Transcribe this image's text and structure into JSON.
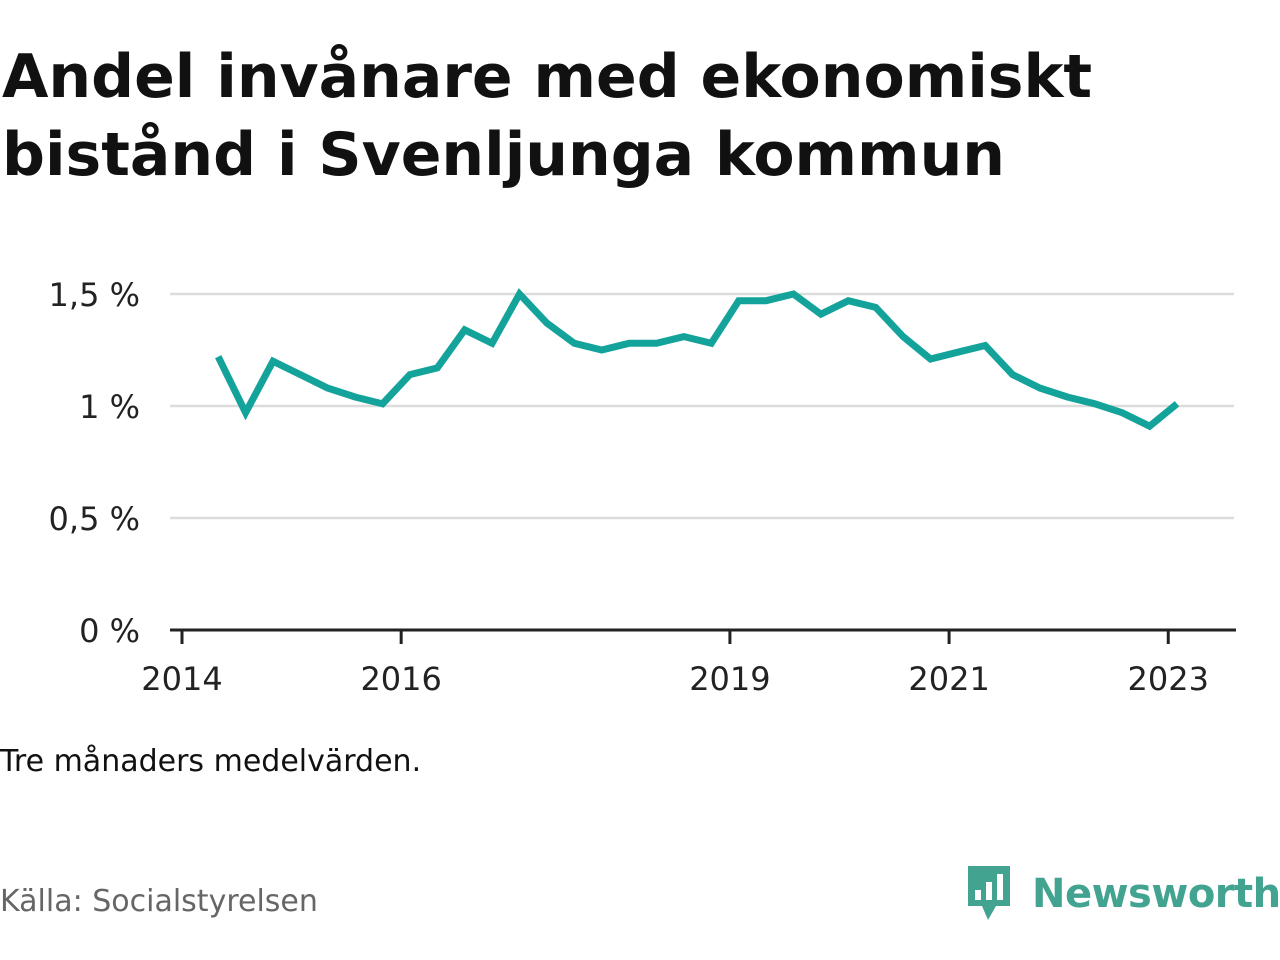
{
  "chart_data": {
    "type": "line",
    "title": "Andel invånare med ekonomiskt bistånd i Svenljunga kommun",
    "xlabel": "",
    "ylabel": "",
    "ylim": [
      0,
      1.5
    ],
    "y_ticks": [
      {
        "value": 0,
        "label": "0 %"
      },
      {
        "value": 0.5,
        "label": "0,5 %"
      },
      {
        "value": 1,
        "label": "1 %"
      },
      {
        "value": 1.5,
        "label": "1,5 %"
      }
    ],
    "x_ticks": [
      {
        "value": 2014,
        "label": "2014"
      },
      {
        "value": 2016,
        "label": "2016"
      },
      {
        "value": 2019,
        "label": "2019"
      },
      {
        "value": 2021,
        "label": "2021"
      },
      {
        "value": 2023,
        "label": "2023"
      }
    ],
    "grid": true,
    "line_color": "#14a39a",
    "series": [
      {
        "x": [
          2014.33,
          2014.58,
          2014.83,
          2015.08,
          2015.33,
          2015.58,
          2015.83,
          2016.08,
          2016.33,
          2016.58,
          2016.83,
          2017.08,
          2017.33,
          2017.58,
          2017.83,
          2018.08,
          2018.33,
          2018.58,
          2018.83,
          2019.08,
          2019.33,
          2019.58,
          2019.83,
          2020.08,
          2020.33,
          2020.58,
          2020.83,
          2021.08,
          2021.33,
          2021.58,
          2021.83,
          2022.08,
          2022.33,
          2022.58,
          2022.83,
          2023.08
        ],
        "values": [
          1.22,
          0.97,
          1.2,
          1.14,
          1.08,
          1.04,
          1.01,
          1.14,
          1.17,
          1.34,
          1.28,
          1.5,
          1.37,
          1.28,
          1.25,
          1.28,
          1.28,
          1.31,
          1.28,
          1.47,
          1.47,
          1.5,
          1.41,
          1.47,
          1.44,
          1.31,
          1.21,
          1.24,
          1.27,
          1.14,
          1.08,
          1.04,
          1.01,
          0.97,
          0.91,
          1.01
        ]
      }
    ]
  },
  "note": "Tre månaders medelvärden.",
  "source": "Källa: Socialstyrelsen",
  "brand": {
    "name": "Newsworthy",
    "color": "#43a391",
    "icon": "bar-chart-speech-bubble-icon"
  }
}
